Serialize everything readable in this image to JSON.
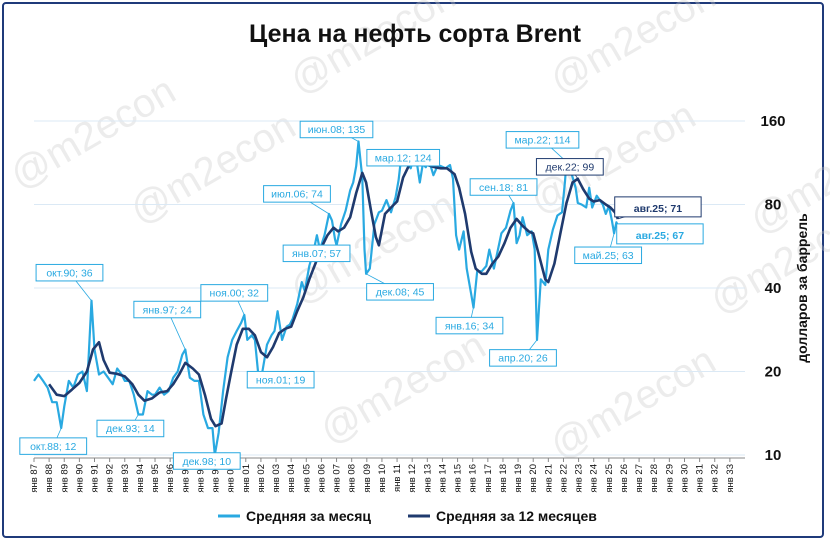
{
  "chart_data": {
    "type": "line",
    "title": "Цена на нефть сорта Brent",
    "ylabel": "долларов за баррель",
    "y_scale": "log",
    "ylim": [
      10,
      160
    ],
    "y_ticks": [
      10,
      20,
      40,
      80,
      160
    ],
    "xlim": [
      1987.0,
      2034.0
    ],
    "x_tick_labels": [
      "янв 87",
      "янв 88",
      "янв 89",
      "янв 90",
      "янв 91",
      "янв 92",
      "янв 93",
      "янв 94",
      "янв 95",
      "янв 96",
      "янв 97",
      "янв 98",
      "янв 99",
      "янв 00",
      "янв 01",
      "янв 02",
      "янв 03",
      "янв 04",
      "янв 05",
      "янв 06",
      "янв 07",
      "янв 08",
      "янв 09",
      "янв 10",
      "янв 11",
      "янв 12",
      "янв 13",
      "янв 14",
      "янв 15",
      "янв 16",
      "янв 17",
      "янв 18",
      "янв 19",
      "янв 20",
      "янв 21",
      "янв 22",
      "янв 23",
      "янв 24",
      "янв 25",
      "янв 26",
      "янв 27",
      "янв 28",
      "янв 29",
      "янв 30",
      "янв 31",
      "янв 32",
      "янв 33"
    ],
    "grid": true,
    "legend_position": "bottom",
    "colors": {
      "monthly": "#29a9e1",
      "annual": "#1f3a6e"
    },
    "watermark": "@m2econ",
    "series": [
      {
        "name": "Средняя за месяц",
        "points": [
          [
            1987.0,
            18.5
          ],
          [
            1987.3,
            19.5
          ],
          [
            1987.6,
            18.5
          ],
          [
            1987.9,
            17.5
          ],
          [
            1988.2,
            15.5
          ],
          [
            1988.5,
            15.5
          ],
          [
            1988.8,
            12.5
          ],
          [
            1989.0,
            15
          ],
          [
            1989.3,
            18.5
          ],
          [
            1989.6,
            17.5
          ],
          [
            1989.9,
            19.5
          ],
          [
            1990.2,
            20
          ],
          [
            1990.5,
            17
          ],
          [
            1990.8,
            36
          ],
          [
            1991.0,
            24
          ],
          [
            1991.3,
            19.5
          ],
          [
            1991.6,
            20
          ],
          [
            1991.9,
            19
          ],
          [
            1992.2,
            18
          ],
          [
            1992.5,
            20.5
          ],
          [
            1992.8,
            19.5
          ],
          [
            1993.0,
            18.5
          ],
          [
            1993.3,
            18.5
          ],
          [
            1993.6,
            16.5
          ],
          [
            1993.9,
            14
          ],
          [
            1994.2,
            14
          ],
          [
            1994.5,
            17
          ],
          [
            1994.8,
            16.5
          ],
          [
            1995.0,
            16.5
          ],
          [
            1995.3,
            17.5
          ],
          [
            1995.6,
            16.5
          ],
          [
            1995.9,
            17
          ],
          [
            1996.2,
            19
          ],
          [
            1996.5,
            20
          ],
          [
            1996.8,
            23
          ],
          [
            1997.0,
            24
          ],
          [
            1997.3,
            19
          ],
          [
            1997.6,
            18.5
          ],
          [
            1997.9,
            18.5
          ],
          [
            1998.2,
            14
          ],
          [
            1998.5,
            12.5
          ],
          [
            1998.8,
            12.5
          ],
          [
            1998.95,
            10
          ],
          [
            1999.2,
            12
          ],
          [
            1999.5,
            17
          ],
          [
            1999.8,
            22.5
          ],
          [
            2000.1,
            26
          ],
          [
            2000.4,
            28
          ],
          [
            2000.7,
            30
          ],
          [
            2000.9,
            32
          ],
          [
            2001.1,
            26
          ],
          [
            2001.4,
            27
          ],
          [
            2001.6,
            26
          ],
          [
            2001.85,
            19
          ],
          [
            2002.1,
            20
          ],
          [
            2002.4,
            25
          ],
          [
            2002.7,
            27
          ],
          [
            2002.9,
            28
          ],
          [
            2003.1,
            33
          ],
          [
            2003.4,
            26
          ],
          [
            2003.7,
            29
          ],
          [
            2003.9,
            29.5
          ],
          [
            2004.1,
            31
          ],
          [
            2004.4,
            35
          ],
          [
            2004.7,
            42
          ],
          [
            2004.9,
            39
          ],
          [
            2005.2,
            48
          ],
          [
            2005.5,
            55
          ],
          [
            2005.7,
            62
          ],
          [
            2005.9,
            55
          ],
          [
            2006.2,
            62
          ],
          [
            2006.5,
            74
          ],
          [
            2006.7,
            70
          ],
          [
            2006.9,
            60
          ],
          [
            2007.0,
            57
          ],
          [
            2007.3,
            68
          ],
          [
            2007.6,
            76
          ],
          [
            2007.9,
            90
          ],
          [
            2008.1,
            96
          ],
          [
            2008.3,
            110
          ],
          [
            2008.45,
            135
          ],
          [
            2008.7,
            100
          ],
          [
            2008.85,
            55
          ],
          [
            2008.95,
            45
          ],
          [
            2009.2,
            47
          ],
          [
            2009.5,
            68
          ],
          [
            2009.8,
            75
          ],
          [
            2010.0,
            76
          ],
          [
            2010.3,
            83
          ],
          [
            2010.6,
            75
          ],
          [
            2010.9,
            85
          ],
          [
            2011.1,
            98
          ],
          [
            2011.3,
            122
          ],
          [
            2011.6,
            115
          ],
          [
            2011.9,
            108
          ],
          [
            2012.2,
            124
          ],
          [
            2012.5,
            96
          ],
          [
            2012.7,
            112
          ],
          [
            2012.9,
            109
          ],
          [
            2013.1,
            116
          ],
          [
            2013.4,
            102
          ],
          [
            2013.7,
            111
          ],
          [
            2013.9,
            110
          ],
          [
            2014.2,
            108
          ],
          [
            2014.5,
            111
          ],
          [
            2014.7,
            99
          ],
          [
            2014.9,
            62
          ],
          [
            2015.1,
            55
          ],
          [
            2015.4,
            64
          ],
          [
            2015.6,
            47
          ],
          [
            2015.9,
            38
          ],
          [
            2016.05,
            34
          ],
          [
            2016.3,
            46
          ],
          [
            2016.6,
            46
          ],
          [
            2016.9,
            48
          ],
          [
            2017.1,
            55
          ],
          [
            2017.4,
            47
          ],
          [
            2017.7,
            56
          ],
          [
            2017.9,
            63
          ],
          [
            2018.2,
            66
          ],
          [
            2018.5,
            76
          ],
          [
            2018.7,
            81
          ],
          [
            2018.9,
            58
          ],
          [
            2019.1,
            62
          ],
          [
            2019.3,
            72
          ],
          [
            2019.6,
            62
          ],
          [
            2019.9,
            64
          ],
          [
            2020.1,
            55
          ],
          [
            2020.25,
            26
          ],
          [
            2020.5,
            43
          ],
          [
            2020.8,
            41
          ],
          [
            2021.0,
            55
          ],
          [
            2021.3,
            65
          ],
          [
            2021.6,
            73
          ],
          [
            2021.9,
            75
          ],
          [
            2022.1,
            97
          ],
          [
            2022.2,
            114
          ],
          [
            2022.5,
            105
          ],
          [
            2022.8,
            92
          ],
          [
            2022.95,
            81
          ],
          [
            2023.2,
            80
          ],
          [
            2023.5,
            78
          ],
          [
            2023.7,
            92
          ],
          [
            2023.9,
            78
          ],
          [
            2024.2,
            86
          ],
          [
            2024.4,
            83
          ],
          [
            2024.6,
            80
          ],
          [
            2024.8,
            74
          ],
          [
            2025.0,
            79
          ],
          [
            2025.2,
            70
          ],
          [
            2025.35,
            63
          ],
          [
            2025.5,
            69
          ],
          [
            2025.6,
            67
          ]
        ]
      },
      {
        "name": "Средняя за 12 месяцев",
        "points": [
          [
            1988.0,
            18
          ],
          [
            1988.5,
            16.5
          ],
          [
            1989.0,
            16.3
          ],
          [
            1989.5,
            17.2
          ],
          [
            1990.0,
            18.2
          ],
          [
            1990.5,
            20
          ],
          [
            1990.9,
            24
          ],
          [
            1991.3,
            25.5
          ],
          [
            1991.6,
            22
          ],
          [
            1992.0,
            19.8
          ],
          [
            1992.5,
            19.6
          ],
          [
            1993.0,
            19.2
          ],
          [
            1993.5,
            18
          ],
          [
            1993.9,
            16.5
          ],
          [
            1994.3,
            15.7
          ],
          [
            1994.8,
            16
          ],
          [
            1995.3,
            16.8
          ],
          [
            1995.8,
            17
          ],
          [
            1996.2,
            18
          ],
          [
            1996.6,
            19.5
          ],
          [
            1997.0,
            21.5
          ],
          [
            1997.5,
            20.5
          ],
          [
            1997.9,
            19.5
          ],
          [
            1998.3,
            16.5
          ],
          [
            1998.7,
            13.5
          ],
          [
            1999.0,
            12.7
          ],
          [
            1999.4,
            13
          ],
          [
            1999.7,
            16
          ],
          [
            2000.0,
            19.5
          ],
          [
            2000.4,
            25
          ],
          [
            2000.8,
            28.5
          ],
          [
            2001.2,
            28.5
          ],
          [
            2001.6,
            27
          ],
          [
            2002.0,
            23.5
          ],
          [
            2002.4,
            22.5
          ],
          [
            2002.8,
            24.5
          ],
          [
            2003.2,
            27.5
          ],
          [
            2003.6,
            28.5
          ],
          [
            2004.0,
            29
          ],
          [
            2004.4,
            33
          ],
          [
            2004.8,
            37
          ],
          [
            2005.2,
            43
          ],
          [
            2005.6,
            49
          ],
          [
            2006.0,
            56
          ],
          [
            2006.4,
            62
          ],
          [
            2006.8,
            66
          ],
          [
            2007.1,
            64
          ],
          [
            2007.5,
            66
          ],
          [
            2007.9,
            72
          ],
          [
            2008.3,
            88
          ],
          [
            2008.7,
            104
          ],
          [
            2008.95,
            96
          ],
          [
            2009.3,
            75
          ],
          [
            2009.6,
            61
          ],
          [
            2009.8,
            57
          ],
          [
            2010.2,
            74
          ],
          [
            2010.6,
            78
          ],
          [
            2011.0,
            82
          ],
          [
            2011.4,
            100
          ],
          [
            2011.8,
            111
          ],
          [
            2012.2,
            113
          ],
          [
            2012.6,
            111
          ],
          [
            2013.0,
            111
          ],
          [
            2013.5,
            109
          ],
          [
            2013.9,
            108
          ],
          [
            2014.3,
            108
          ],
          [
            2014.8,
            103
          ],
          [
            2015.1,
            92
          ],
          [
            2015.5,
            74
          ],
          [
            2015.9,
            54
          ],
          [
            2016.2,
            47
          ],
          [
            2016.6,
            45
          ],
          [
            2016.9,
            45
          ],
          [
            2017.3,
            49
          ],
          [
            2017.7,
            52
          ],
          [
            2018.1,
            58
          ],
          [
            2018.5,
            66
          ],
          [
            2018.9,
            71
          ],
          [
            2019.3,
            67
          ],
          [
            2019.7,
            64
          ],
          [
            2020.0,
            63
          ],
          [
            2020.4,
            52
          ],
          [
            2020.8,
            43
          ],
          [
            2021.0,
            42
          ],
          [
            2021.4,
            49
          ],
          [
            2021.8,
            63
          ],
          [
            2022.2,
            81
          ],
          [
            2022.6,
            96
          ],
          [
            2022.95,
            99
          ],
          [
            2023.3,
            91
          ],
          [
            2023.7,
            84
          ],
          [
            2024.0,
            82
          ],
          [
            2024.4,
            83
          ],
          [
            2024.8,
            80
          ],
          [
            2025.1,
            78
          ],
          [
            2025.4,
            75
          ],
          [
            2025.6,
            71
          ]
        ]
      }
    ],
    "annotations": [
      {
        "label": "окт.90; 36",
        "series": "monthly",
        "x": 1990.8,
        "y": 36
      },
      {
        "label": "окт.88; 12",
        "series": "monthly",
        "x": 1988.8,
        "y": 12.5
      },
      {
        "label": "дек.93; 14",
        "series": "monthly",
        "x": 1993.9,
        "y": 14
      },
      {
        "label": "янв.97; 24",
        "series": "monthly",
        "x": 1997.0,
        "y": 24
      },
      {
        "label": "дек.98; 10",
        "series": "monthly",
        "x": 1998.95,
        "y": 10
      },
      {
        "label": "ноя.00; 32",
        "series": "monthly",
        "x": 2000.9,
        "y": 32
      },
      {
        "label": "ноя.01; 19",
        "series": "monthly",
        "x": 2001.85,
        "y": 19
      },
      {
        "label": "июл.06; 74",
        "series": "monthly",
        "x": 2006.5,
        "y": 74
      },
      {
        "label": "янв.07; 57",
        "series": "monthly",
        "x": 2007.0,
        "y": 57
      },
      {
        "label": "июн.08; 135",
        "series": "monthly",
        "x": 2008.45,
        "y": 135
      },
      {
        "label": "дек.08; 45",
        "series": "monthly",
        "x": 2008.95,
        "y": 45
      },
      {
        "label": "мар.12; 124",
        "series": "monthly",
        "x": 2012.2,
        "y": 124
      },
      {
        "label": "янв.16; 34",
        "series": "monthly",
        "x": 2016.05,
        "y": 34
      },
      {
        "label": "сен.18; 81",
        "series": "monthly",
        "x": 2018.7,
        "y": 81
      },
      {
        "label": "апр.20; 26",
        "series": "monthly",
        "x": 2020.25,
        "y": 26
      },
      {
        "label": "мар.22; 114",
        "series": "monthly",
        "x": 2022.2,
        "y": 114
      },
      {
        "label": "дек.22; 99",
        "series": "annual",
        "x": 2022.95,
        "y": 99
      },
      {
        "label": "май.25; 63",
        "series": "monthly",
        "x": 2025.35,
        "y": 63
      },
      {
        "label": "авг.25; 71",
        "series": "annual",
        "x": 2025.6,
        "y": 71,
        "emphasis": true
      },
      {
        "label": "авг.25; 67",
        "series": "monthly",
        "x": 2025.6,
        "y": 67,
        "emphasis": true
      }
    ]
  }
}
